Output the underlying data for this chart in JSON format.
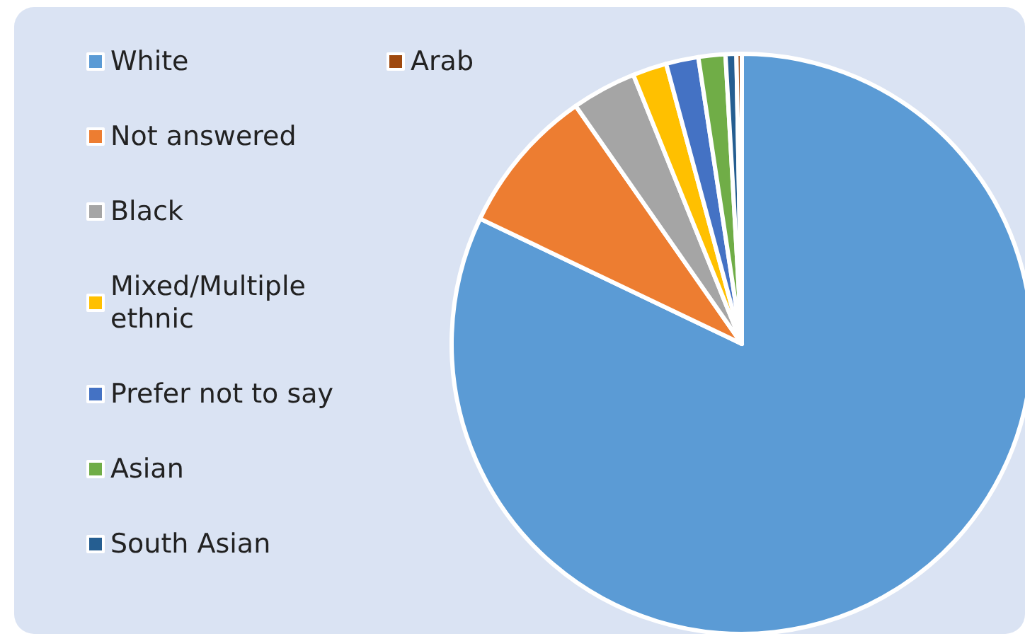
{
  "chart_data": {
    "type": "pie",
    "categories": [
      "White",
      "Not answered",
      "Black",
      "Mixed/Multiple ethnic",
      "Prefer not to say",
      "Asian",
      "South Asian",
      "Arab"
    ],
    "values": [
      82.1,
      8.2,
      3.6,
      1.9,
      1.8,
      1.5,
      0.6,
      0.3
    ],
    "colors": [
      "#5b9bd5",
      "#ed7d31",
      "#a5a5a5",
      "#ffc000",
      "#4472c4",
      "#70ad47",
      "#255e91",
      "#9e480e"
    ],
    "legend": "left"
  }
}
